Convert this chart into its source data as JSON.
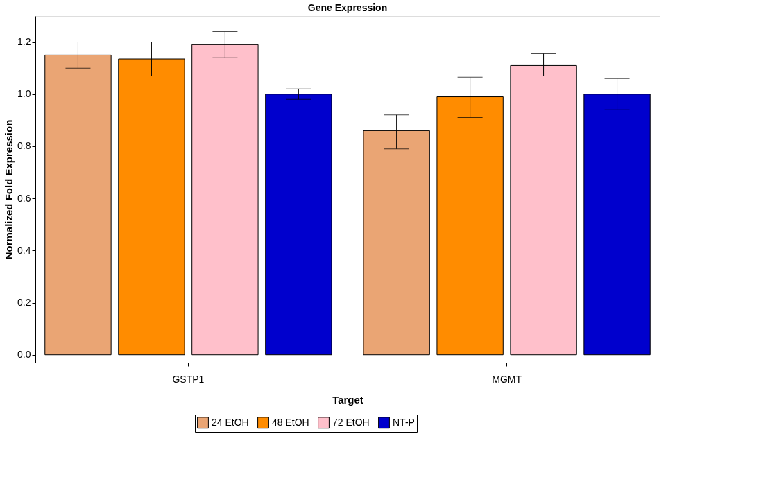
{
  "chart_data": {
    "type": "bar",
    "title": "Gene Expression",
    "xlabel": "Target",
    "ylabel": "Normalized Fold Expression",
    "categories": [
      "GSTP1",
      "MGMT"
    ],
    "series": [
      {
        "name": "24 EtOH",
        "color": "#eaa574",
        "values": [
          1.15,
          0.86
        ],
        "errors": [
          [
            1.1,
            1.2
          ],
          [
            0.79,
            0.92
          ]
        ]
      },
      {
        "name": "48 EtOH",
        "color": "#ff8c00",
        "values": [
          1.135,
          0.99
        ],
        "errors": [
          [
            1.07,
            1.2
          ],
          [
            0.91,
            1.065
          ]
        ]
      },
      {
        "name": "72 EtOH",
        "color": "#ffc0cb",
        "values": [
          1.19,
          1.11
        ],
        "errors": [
          [
            1.14,
            1.24
          ],
          [
            1.07,
            1.155
          ]
        ]
      },
      {
        "name": "NT-P",
        "color": "#0000cd",
        "values": [
          1.0,
          1.0
        ],
        "errors": [
          [
            0.98,
            1.02
          ],
          [
            0.94,
            1.06
          ]
        ]
      }
    ],
    "ylim": [
      -0.03,
      1.3
    ],
    "yticks": [
      {
        "value": 0,
        "label": "0.0"
      },
      0.2,
      0.4,
      0.6,
      0.8,
      {
        "value": 1,
        "label": "1.0"
      },
      1.2
    ],
    "grid": false,
    "legend": "bottom"
  }
}
